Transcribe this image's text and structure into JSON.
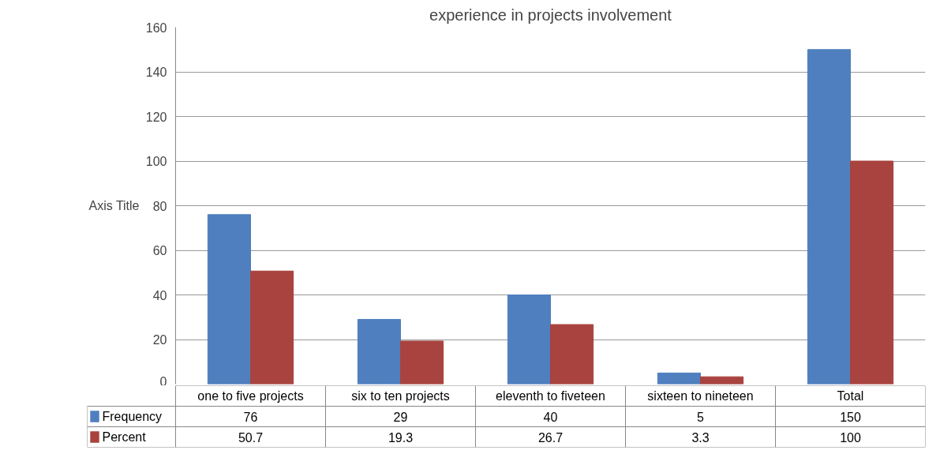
{
  "chart_data": {
    "type": "bar",
    "title": "experience in projects involvement",
    "ylabel": "Axis Title",
    "categories": [
      "one to five projects",
      "six to ten projects",
      "eleventh to fiveteen",
      "sixteen to nineteen",
      "Total"
    ],
    "series": [
      {
        "name": "Frequency",
        "color": "#4f7fbe",
        "values": [
          76,
          29,
          40,
          5,
          150
        ]
      },
      {
        "name": "Percent",
        "color": "#a8433f",
        "values": [
          50.7,
          19.3,
          26.7,
          3.3,
          100
        ]
      }
    ],
    "ylim": [
      0,
      160
    ],
    "yticks": [
      0,
      20,
      40,
      60,
      80,
      100,
      120,
      140,
      160
    ],
    "grid": "y",
    "data_labels": true,
    "legend": "bottom"
  }
}
